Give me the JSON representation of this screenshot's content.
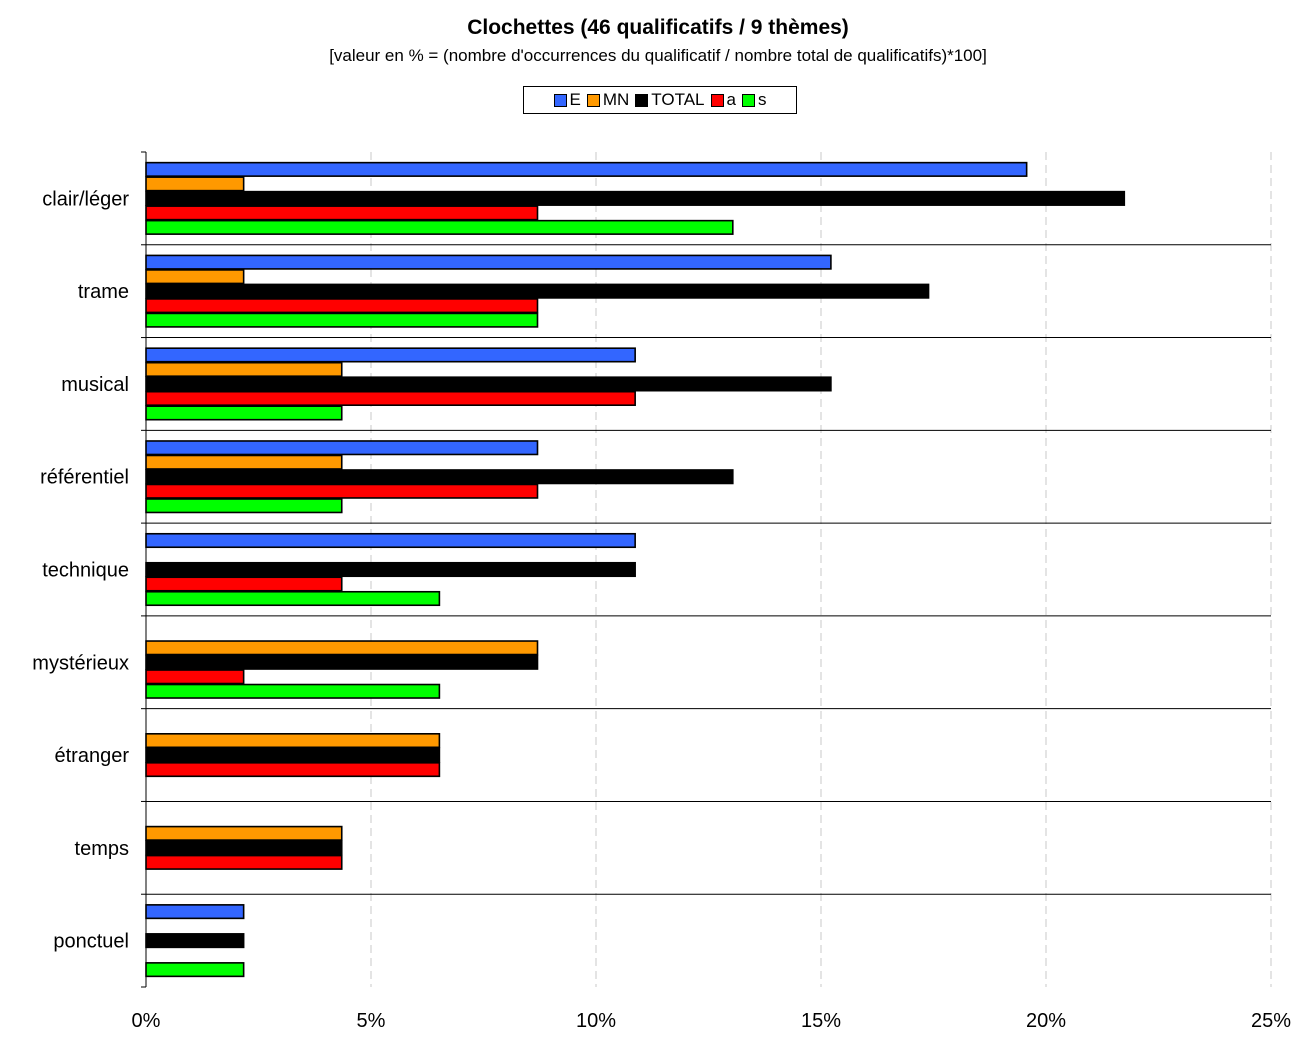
{
  "chart_data": {
    "type": "bar",
    "orientation": "horizontal",
    "title": "Clochettes (46 qualificatifs / 9 thèmes)",
    "subtitle": "[valeur en % = (nombre d'occurrences du qualificatif / nombre total de qualificatifs)*100]",
    "categories": [
      "clair/léger",
      "trame",
      "musical",
      "référentiel",
      "technique",
      "mystérieux",
      "étranger",
      "temps",
      "ponctuel"
    ],
    "series": [
      {
        "name": "E",
        "color": "#3366ff",
        "values": [
          19.57,
          15.22,
          10.87,
          8.7,
          10.87,
          0,
          0,
          0,
          2.17
        ]
      },
      {
        "name": "MN",
        "color": "#ff9900",
        "values": [
          2.17,
          2.17,
          4.35,
          4.35,
          0,
          8.7,
          6.52,
          4.35,
          0
        ]
      },
      {
        "name": "TOTAL",
        "color": "#000000",
        "values": [
          21.74,
          17.39,
          15.22,
          13.04,
          10.87,
          8.7,
          6.52,
          4.35,
          2.17
        ]
      },
      {
        "name": "a",
        "color": "#ff0000",
        "values": [
          8.7,
          8.7,
          10.87,
          8.7,
          4.35,
          2.17,
          6.52,
          4.35,
          0
        ]
      },
      {
        "name": "s",
        "color": "#00ff00",
        "values": [
          13.04,
          8.7,
          4.35,
          4.35,
          6.52,
          6.52,
          0,
          0,
          2.17
        ]
      }
    ],
    "xlim": [
      0,
      25
    ],
    "xticks": [
      "0%",
      "5%",
      "10%",
      "15%",
      "20%",
      "25%"
    ],
    "grid": "vertical dashed",
    "legend_position": "top-center"
  }
}
